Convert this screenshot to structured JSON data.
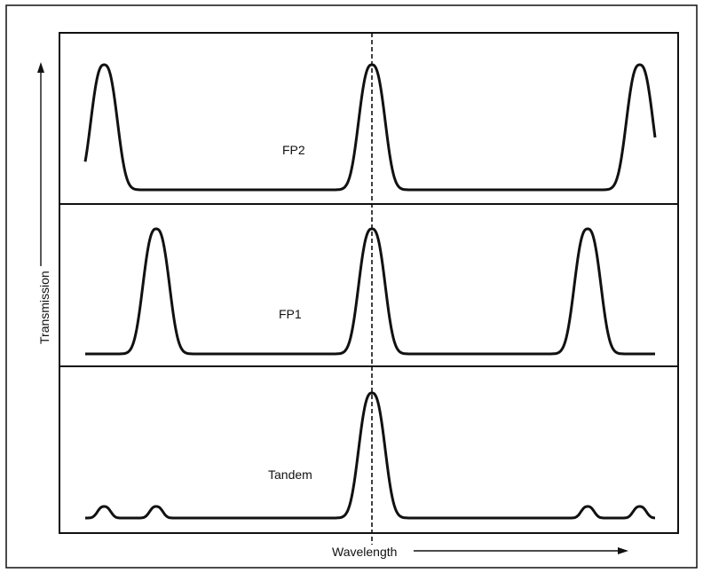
{
  "axes": {
    "x_label": "Wavelength",
    "y_label": "Transmission"
  },
  "panels": [
    {
      "id": "fp2",
      "label": "FP2",
      "peaks": [
        0.14,
        0.5,
        0.86
      ]
    },
    {
      "id": "fp1",
      "label": "FP1",
      "peaks": [
        0.21,
        0.5,
        0.79
      ]
    },
    {
      "id": "tandem",
      "label": "Tandem",
      "peaks": [
        0.5
      ],
      "minor_peaks": [
        0.14,
        0.21,
        0.79,
        0.86
      ]
    }
  ],
  "reference_line": {
    "style": "dashed",
    "position": 0.5
  },
  "colors": {
    "line": "#111111",
    "background": "#ffffff",
    "border": "#111111"
  }
}
